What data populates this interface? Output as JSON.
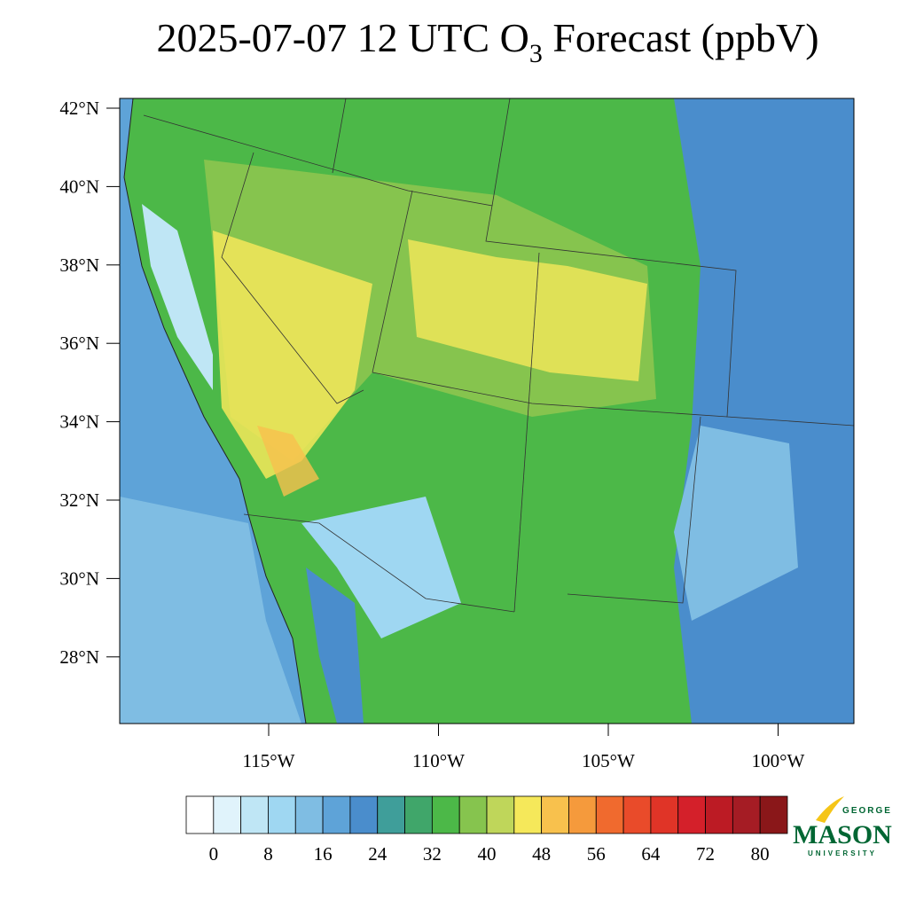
{
  "title": {
    "text": "2025-07-07 12 UTC O",
    "sub": "3",
    "tail": " Forecast (ppbV)"
  },
  "map": {
    "lat_ticks": [
      {
        "value": 42,
        "label": "42°N"
      },
      {
        "value": 40,
        "label": "40°N"
      },
      {
        "value": 38,
        "label": "38°N"
      },
      {
        "value": 36,
        "label": "36°N"
      },
      {
        "value": 34,
        "label": "34°N"
      },
      {
        "value": 32,
        "label": "32°N"
      },
      {
        "value": 30,
        "label": "30°N"
      },
      {
        "value": 28,
        "label": "28°N"
      }
    ],
    "lon_ticks": [
      {
        "value": -115,
        "label": "115°W"
      },
      {
        "value": -110,
        "label": "110°W"
      },
      {
        "value": -105,
        "label": "105°W"
      },
      {
        "value": -100,
        "label": "100°W"
      }
    ]
  },
  "colorbar": {
    "bounds": [
      0,
      4,
      8,
      12,
      16,
      20,
      24,
      28,
      32,
      36,
      40,
      44,
      48,
      52,
      56,
      60,
      64,
      68,
      72,
      76,
      80
    ],
    "ticks": [
      0,
      8,
      16,
      24,
      32,
      40,
      48,
      56,
      64,
      72,
      80
    ],
    "colors": [
      "#ffffff",
      "#e0f3fb",
      "#bfe6f5",
      "#9fd7f2",
      "#7fbde3",
      "#5ea3d8",
      "#4a8dcc",
      "#3f9e9a",
      "#40a66a",
      "#4cb848",
      "#86c44e",
      "#bfd65a",
      "#f5e85a",
      "#f8c14d",
      "#f59a3c",
      "#f06a2e",
      "#e94b2a",
      "#e03427",
      "#d4202a",
      "#bc1b24",
      "#a51c24",
      "#8a1719"
    ]
  },
  "logo": {
    "top": "GEORGE",
    "main": "MASON",
    "bottom": "UNIVERSITY"
  }
}
